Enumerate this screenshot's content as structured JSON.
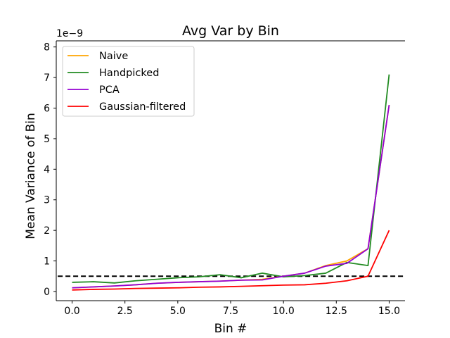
{
  "chart_data": {
    "type": "line",
    "title": "Avg Var by Bin",
    "xlabel": "Bin #",
    "ylabel": "Mean Variance of Bin",
    "y_offset_label": "1e−9",
    "xlim": [
      -0.75,
      15.75
    ],
    "ylim": [
      -0.3,
      8.2
    ],
    "xticks": [
      0.0,
      2.5,
      5.0,
      7.5,
      10.0,
      12.5,
      15.0
    ],
    "xtick_labels": [
      "0.0",
      "2.5",
      "5.0",
      "7.5",
      "10.0",
      "12.5",
      "15.0"
    ],
    "yticks": [
      0,
      1,
      2,
      3,
      4,
      5,
      6,
      7,
      8
    ],
    "ytick_labels": [
      "0",
      "1",
      "2",
      "3",
      "4",
      "5",
      "6",
      "7",
      "8"
    ],
    "grid": false,
    "legend_position": "top-left",
    "x": [
      0,
      1,
      2,
      3,
      4,
      5,
      6,
      7,
      8,
      9,
      10,
      11,
      12,
      13,
      14,
      15
    ],
    "series": [
      {
        "name": "Naive",
        "color": "#FFA500",
        "values": [
          0.12,
          0.15,
          0.18,
          0.22,
          0.27,
          0.3,
          0.32,
          0.34,
          0.37,
          0.4,
          0.5,
          0.6,
          0.85,
          1.0,
          1.4,
          6.1
        ]
      },
      {
        "name": "Handpicked",
        "color": "#228B22",
        "values": [
          0.3,
          0.32,
          0.28,
          0.35,
          0.4,
          0.45,
          0.48,
          0.55,
          0.45,
          0.6,
          0.48,
          0.52,
          0.6,
          0.95,
          0.85,
          7.1
        ]
      },
      {
        "name": "PCA",
        "color": "#9400D3",
        "values": [
          0.12,
          0.15,
          0.18,
          0.22,
          0.27,
          0.3,
          0.32,
          0.34,
          0.37,
          0.38,
          0.5,
          0.6,
          0.83,
          0.92,
          1.4,
          6.1
        ]
      },
      {
        "name": "Gaussian-filtered",
        "color": "#FF0000",
        "values": [
          0.05,
          0.07,
          0.08,
          0.1,
          0.11,
          0.12,
          0.14,
          0.15,
          0.17,
          0.19,
          0.21,
          0.22,
          0.27,
          0.35,
          0.5,
          2.0
        ]
      }
    ],
    "reference_line": {
      "y": 0.5,
      "x_range": [
        -0.75,
        15.75
      ],
      "color": "#000000",
      "style": "dashed"
    }
  }
}
